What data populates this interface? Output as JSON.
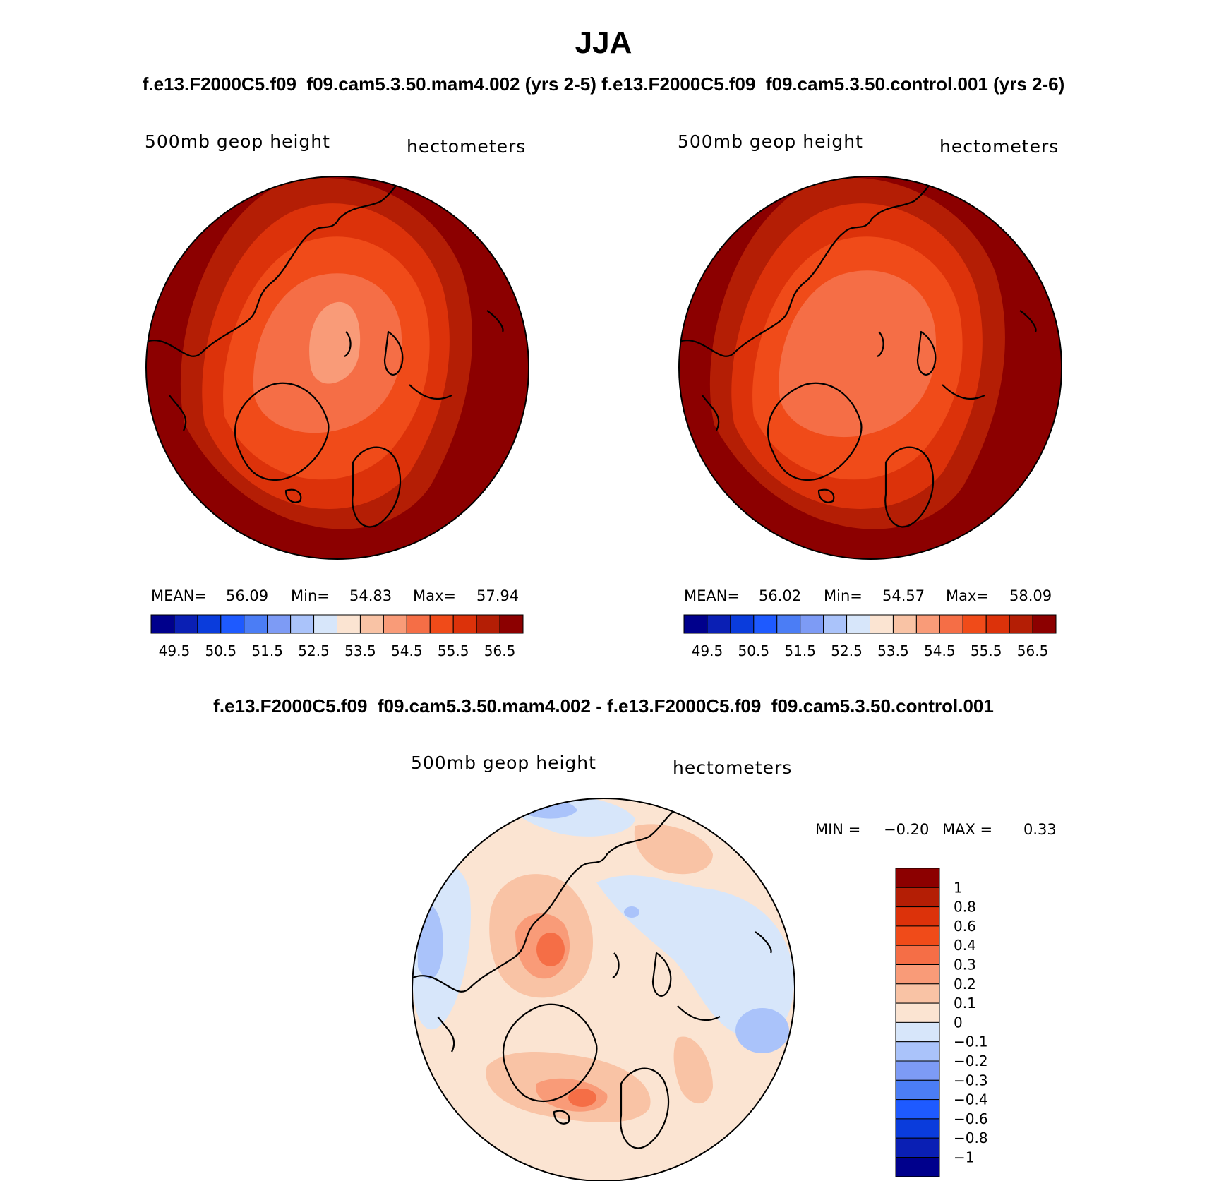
{
  "page": {
    "title": "JJA",
    "subtitle_top": "f.e13.F2000C5.f09_f09.cam5.3.50.mam4.002 (yrs 2-5) f.e13.F2000C5.f09_f09.cam5.3.50.control.001 (yrs 2-6)",
    "subtitle_diff": "f.e13.F2000C5.f09_f09.cam5.3.50.mam4.002 - f.e13.F2000C5.f09_f09.cam5.3.50.control.001"
  },
  "panels": {
    "left": {
      "field_label": "500mb geop height",
      "units": "hectometers",
      "mean_label": "MEAN=",
      "mean": "56.09",
      "min_label": "Min=",
      "min": "54.83",
      "max_label": "Max=",
      "max": "57.94"
    },
    "right": {
      "field_label": "500mb geop height",
      "units": "hectometers",
      "mean_label": "MEAN=",
      "mean": "56.02",
      "min_label": "Min=",
      "min": "54.57",
      "max_label": "Max=",
      "max": "58.09"
    },
    "diff": {
      "field_label": "500mb geop height",
      "units": "hectometers",
      "min_label": "MIN =",
      "min": "−0.20",
      "max_label": "MAX =",
      "max": "0.33"
    }
  },
  "colorbar_main": {
    "colors": [
      "#00008c",
      "#0a1fb4",
      "#0a3cdc",
      "#1e5aff",
      "#4b7df5",
      "#7d9bf5",
      "#aac3fa",
      "#d7e6fa",
      "#fbe4d2",
      "#f9c3a5",
      "#f99b78",
      "#f56e46",
      "#f04b19",
      "#dc320a",
      "#b41e05",
      "#8c0000"
    ],
    "tick_labels": [
      "49.5",
      "50.5",
      "51.5",
      "52.5",
      "53.5",
      "54.5",
      "55.5",
      "56.5"
    ]
  },
  "colorbar_diff": {
    "colors": [
      "#8c0000",
      "#b41e05",
      "#dc320a",
      "#f04b19",
      "#f56e46",
      "#f99b78",
      "#f9c3a5",
      "#fbe4d2",
      "#d7e6fa",
      "#aac3fa",
      "#7d9bf5",
      "#4b7df5",
      "#1e5aff",
      "#0a3cdc",
      "#0a1fb4",
      "#00008c"
    ],
    "tick_labels": [
      "1",
      "0.8",
      "0.6",
      "0.4",
      "0.3",
      "0.2",
      "0.1",
      "0",
      "−0.1",
      "−0.2",
      "−0.3",
      "−0.4",
      "−0.6",
      "−0.8",
      "−1"
    ]
  }
}
